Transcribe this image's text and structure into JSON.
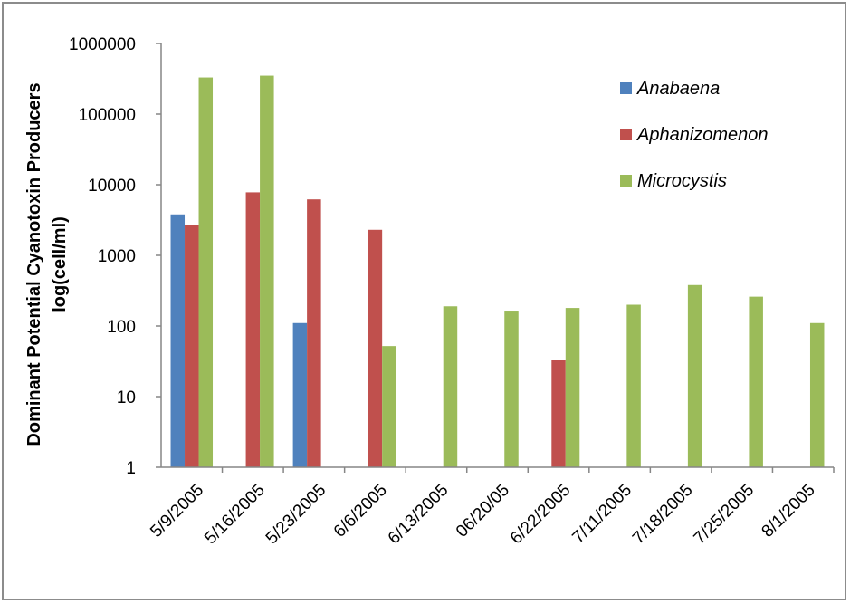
{
  "chart_data": {
    "type": "bar",
    "title": "",
    "xlabel": "",
    "ylabel_line1": "Dominant Potential Cyanotoxin  Producers",
    "ylabel_line2": "log(cell/ml)",
    "yscale": "log",
    "ylim": [
      1,
      1000000
    ],
    "yticks": [
      1,
      10,
      100,
      1000,
      10000,
      100000,
      1000000
    ],
    "ytick_labels": [
      "1",
      "10",
      "100",
      "1000",
      "10000",
      "100000",
      "1000000"
    ],
    "grid": false,
    "legend_position": "top-right",
    "categories": [
      "5/9/2005",
      "5/16/2005",
      "5/23/2005",
      "6/6/2005",
      "6/13/2005",
      "06/20/05",
      "6/22/2005",
      "7/11/2005",
      "7/18/2005",
      "7/25/2005",
      "8/1/2005"
    ],
    "series": [
      {
        "name": "Anabaena",
        "color": "#4f81bd",
        "values": [
          3800,
          null,
          110,
          null,
          null,
          null,
          null,
          null,
          null,
          null,
          null
        ]
      },
      {
        "name": "Aphanizomenon",
        "color": "#c0504d",
        "values": [
          2700,
          7800,
          6200,
          2300,
          null,
          null,
          33,
          null,
          null,
          null,
          null
        ]
      },
      {
        "name": "Microcystis",
        "color": "#9bbb59",
        "values": [
          330000,
          350000,
          null,
          52,
          190,
          165,
          180,
          200,
          380,
          260,
          110
        ]
      }
    ]
  }
}
